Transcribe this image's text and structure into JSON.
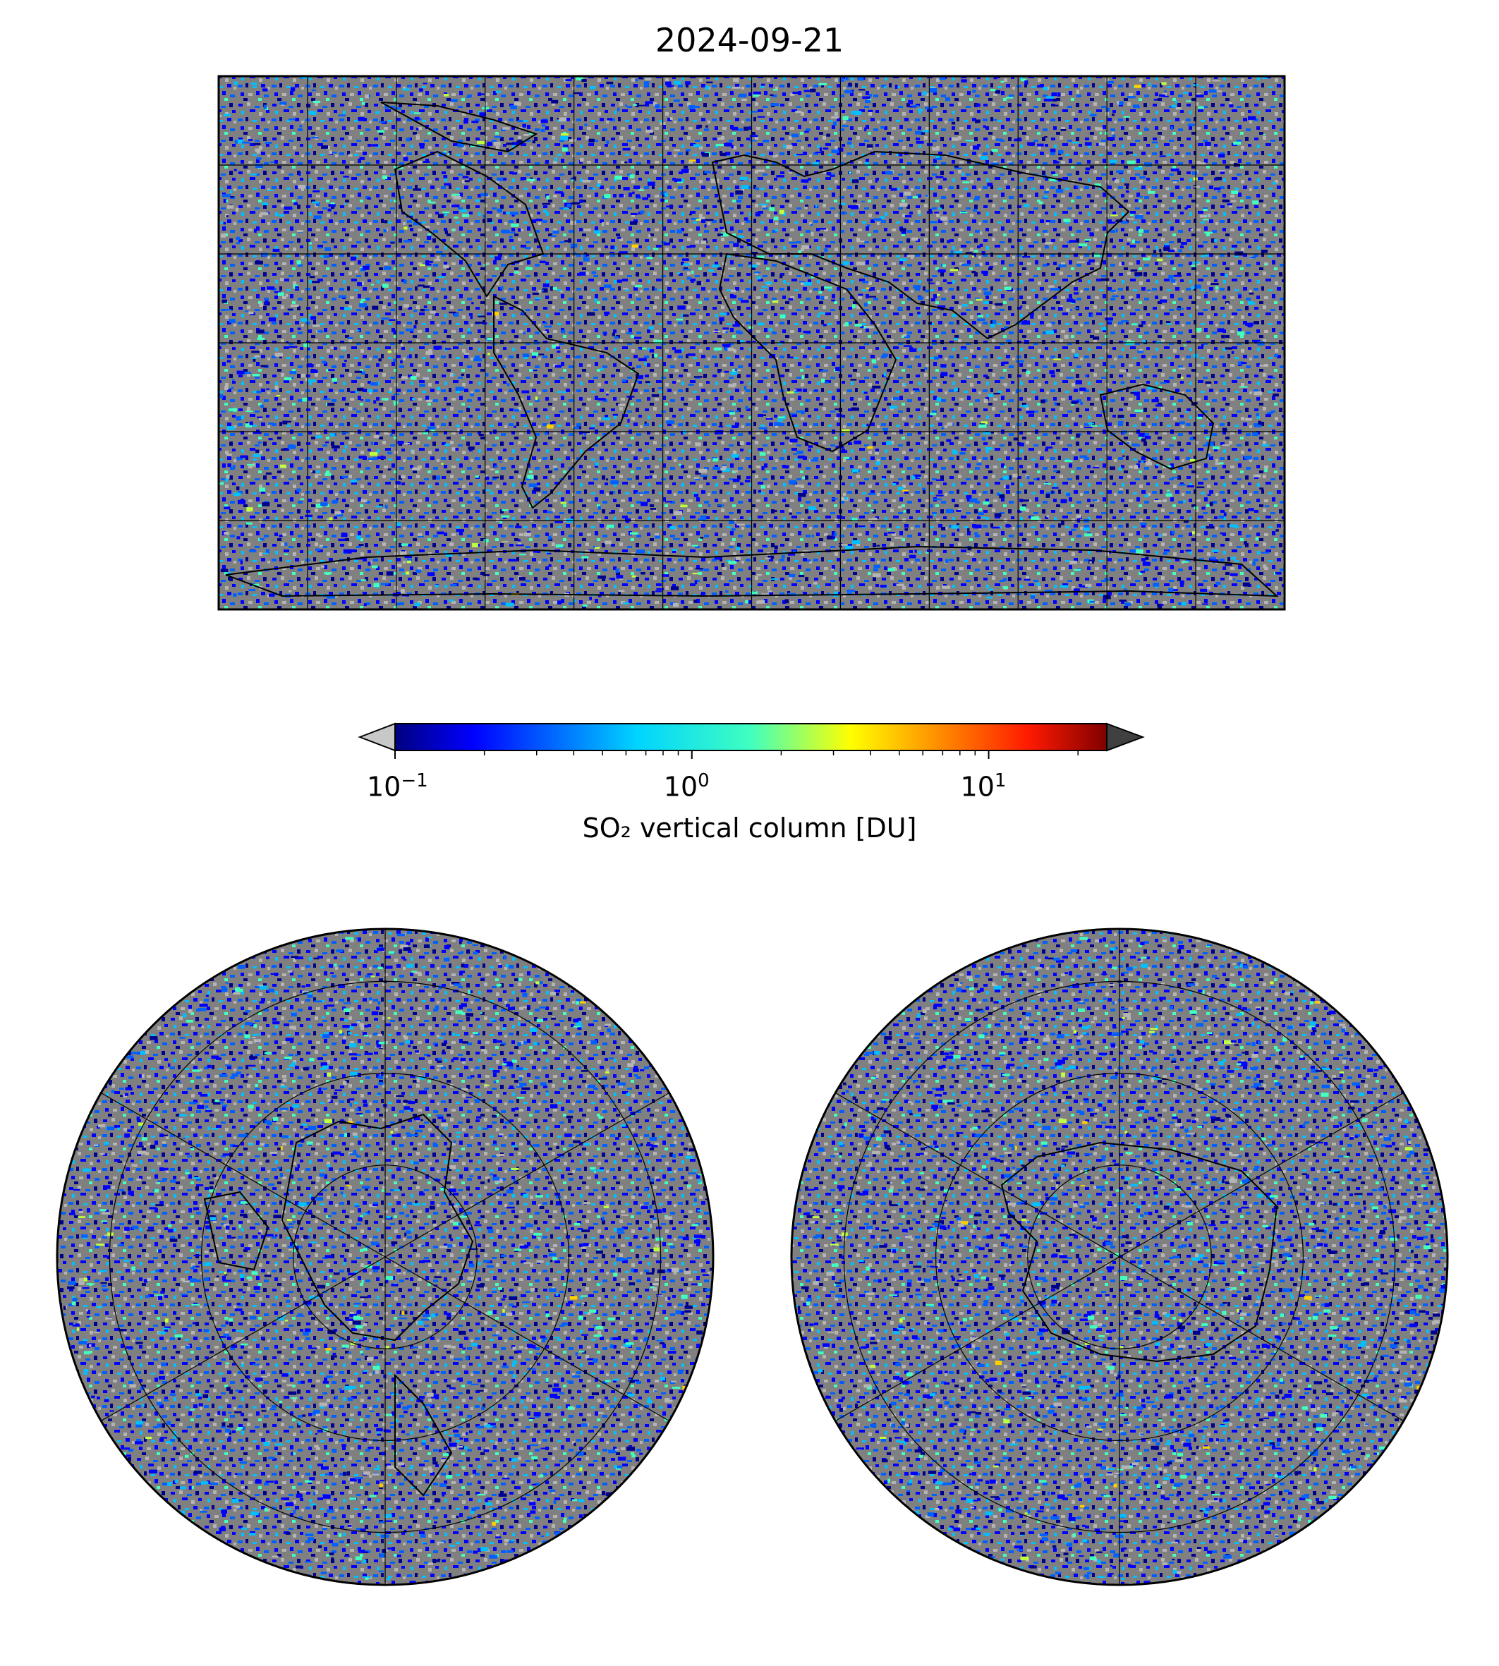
{
  "title": "2024-09-21",
  "colorbar": {
    "label": "SO₂ vertical column [DU]",
    "scale": "log",
    "range": [
      0.1,
      25
    ],
    "ticks": [
      {
        "base": "10",
        "exp": "−1",
        "value": 0.1
      },
      {
        "base": "10",
        "exp": "0",
        "value": 1
      },
      {
        "base": "10",
        "exp": "1",
        "value": 10
      }
    ],
    "colormap": "jet",
    "under_color": "#c8c8c8",
    "over_color": "#404040",
    "extend": "both"
  },
  "maps": [
    {
      "name": "global",
      "projection": "plate-carree",
      "background": "#808080",
      "gridlines_lon_deg": [
        -180,
        -150,
        -120,
        -90,
        -60,
        -30,
        0,
        30,
        60,
        90,
        120,
        150,
        180
      ],
      "gridlines_lat_deg": [
        -90,
        -60,
        -30,
        0,
        30,
        60,
        90
      ]
    },
    {
      "name": "north-polar",
      "projection": "north-polar-stereographic",
      "background": "#808080",
      "circles_lat_deg": [
        80,
        60,
        40,
        20
      ],
      "meridians_deg": [
        0,
        60,
        120,
        180,
        240,
        300
      ]
    },
    {
      "name": "south-polar",
      "projection": "south-polar-stereographic",
      "background": "#808080",
      "circles_lat_deg": [
        -80,
        -60,
        -40,
        -20
      ],
      "meridians_deg": [
        0,
        60,
        120,
        180,
        240,
        300
      ]
    }
  ],
  "palette": {
    "no_data": "#808080",
    "low": "#b4b4b4",
    "c1": "#00008f",
    "c2": "#0000ff",
    "c3": "#0060ff",
    "c4": "#00c0ff",
    "c5": "#40ffbf",
    "c6": "#c0ff40",
    "c7": "#ffd000"
  }
}
